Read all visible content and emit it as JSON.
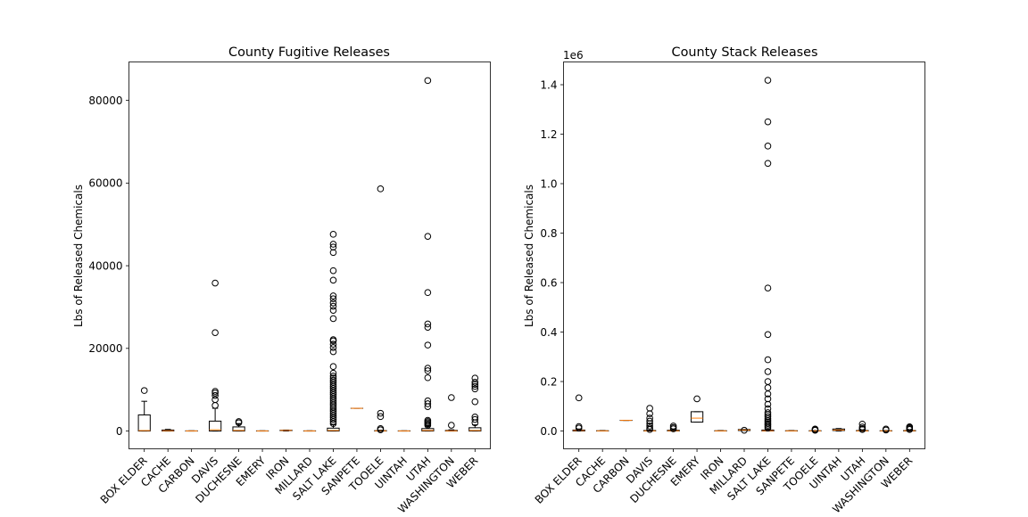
{
  "chart_data": [
    {
      "type": "box",
      "title": "County Fugitive Releases",
      "xlabel": "",
      "ylabel": "Lbs of Released Chemicals",
      "scale_label": "",
      "ylim": [
        -4300,
        89300
      ],
      "yticks": [
        0,
        20000,
        40000,
        60000,
        80000
      ],
      "ytick_labels": [
        "0",
        "20000",
        "40000",
        "60000",
        "80000"
      ],
      "categories": [
        "BOX ELDER",
        "CACHE",
        "CARBON",
        "DAVIS",
        "DUCHESNE",
        "EMERY",
        "IRON",
        "MILLARD",
        "SALT LAKE",
        "SANPETE",
        "TOOELE",
        "UINTAH",
        "UTAH",
        "WASHINGTON",
        "WEBER"
      ],
      "boxes": [
        {
          "whislo": 0,
          "q1": 0,
          "med": 120,
          "q3": 3900,
          "whishi": 7200,
          "fliers": [
            9800
          ]
        },
        {
          "whislo": 0,
          "q1": 0,
          "med": 80,
          "q3": 250,
          "whishi": 400,
          "fliers": []
        },
        {
          "whislo": 0,
          "q1": 0,
          "med": 20,
          "q3": 40,
          "whishi": 60,
          "fliers": []
        },
        {
          "whislo": 0,
          "q1": 0,
          "med": 300,
          "q3": 2400,
          "whishi": 5500,
          "fliers": [
            6200,
            7600,
            8600,
            9200,
            9600,
            23800,
            35800
          ]
        },
        {
          "whislo": 0,
          "q1": 0,
          "med": 150,
          "q3": 1000,
          "whishi": 1800,
          "fliers": [
            2000,
            2300
          ]
        },
        {
          "whislo": 0,
          "q1": 0,
          "med": 20,
          "q3": 40,
          "whishi": 60,
          "fliers": []
        },
        {
          "whislo": 0,
          "q1": 100,
          "med": 150,
          "q3": 200,
          "whishi": 250,
          "fliers": []
        },
        {
          "whislo": 0,
          "q1": 0,
          "med": 20,
          "q3": 40,
          "whishi": 60,
          "fliers": []
        },
        {
          "whislo": 0,
          "q1": 0,
          "med": 150,
          "q3": 700,
          "whishi": 1500,
          "fliers": [
            1800,
            2300,
            2800,
            3300,
            3800,
            4300,
            4800,
            5300,
            5800,
            6300,
            6800,
            7300,
            7800,
            8300,
            8800,
            9300,
            9800,
            10300,
            10800,
            11300,
            11800,
            12300,
            12800,
            13300,
            14000,
            15600,
            19200,
            20200,
            21000,
            21800,
            22100,
            27200,
            29200,
            30200,
            31000,
            32000,
            32700,
            36500,
            38800,
            43200,
            44500,
            45200,
            47600
          ]
        },
        {
          "whislo": 5500,
          "q1": 5500,
          "med": 5500,
          "q3": 5500,
          "whishi": 5500,
          "fliers": []
        },
        {
          "whislo": 0,
          "q1": 0,
          "med": 50,
          "q3": 100,
          "whishi": 200,
          "fliers": [
            300,
            600,
            3500,
            4300,
            58600
          ]
        },
        {
          "whislo": 0,
          "q1": 0,
          "med": 20,
          "q3": 40,
          "whishi": 60,
          "fliers": []
        },
        {
          "whislo": 0,
          "q1": 0,
          "med": 150,
          "q3": 600,
          "whishi": 1200,
          "fliers": [
            1400,
            1700,
            2000,
            2300,
            2600,
            5900,
            6600,
            7300,
            12900,
            14600,
            15200,
            20800,
            25100,
            25900,
            33500,
            47100,
            84800
          ]
        },
        {
          "whislo": 0,
          "q1": 0,
          "med": 50,
          "q3": 150,
          "whishi": 300,
          "fliers": [
            1400,
            8100
          ]
        },
        {
          "whislo": 0,
          "q1": 0,
          "med": 150,
          "q3": 800,
          "whishi": 1500,
          "fliers": [
            2000,
            2800,
            3400,
            7100,
            10200,
            10800,
            11300,
            11800,
            12800
          ]
        }
      ]
    },
    {
      "type": "box",
      "title": "County Stack Releases",
      "xlabel": "",
      "ylabel": "Lbs of Released Chemicals",
      "scale_label": "1e6",
      "ylim": [
        -0.072,
        1.492
      ],
      "yticks": [
        0,
        0.2,
        0.4,
        0.6,
        0.8,
        1.0,
        1.2,
        1.4
      ],
      "ytick_labels": [
        "0.0",
        "0.2",
        "0.4",
        "0.6",
        "0.8",
        "1.0",
        "1.2",
        "1.4"
      ],
      "categories": [
        "BOX ELDER",
        "CACHE",
        "CARBON",
        "DAVIS",
        "DUCHESNE",
        "EMERY",
        "IRON",
        "MILLARD",
        "SALT LAKE",
        "SANPETE",
        "TOOELE",
        "UINTAH",
        "UTAH",
        "WASHINGTON",
        "WEBER"
      ],
      "boxes": [
        {
          "whislo": 0,
          "q1": 0,
          "med": 0.002,
          "q3": 0.004,
          "whishi": 0.008,
          "fliers": [
            0.012,
            0.018,
            0.134
          ]
        },
        {
          "whislo": 0,
          "q1": 0,
          "med": 0.0005,
          "q3": 0.001,
          "whishi": 0.002,
          "fliers": []
        },
        {
          "whislo": 0.043,
          "q1": 0.043,
          "med": 0.043,
          "q3": 0.043,
          "whishi": 0.043,
          "fliers": []
        },
        {
          "whislo": 0,
          "q1": 0,
          "med": 0.0005,
          "q3": 0.002,
          "whishi": 0.004,
          "fliers": [
            0.006,
            0.012,
            0.02,
            0.03,
            0.04,
            0.052,
            0.07,
            0.092
          ]
        },
        {
          "whislo": 0,
          "q1": 0,
          "med": 0.001,
          "q3": 0.003,
          "whishi": 0.006,
          "fliers": [
            0.009,
            0.014,
            0.02
          ]
        },
        {
          "whislo": 0.036,
          "q1": 0.036,
          "med": 0.052,
          "q3": 0.078,
          "whishi": 0.078,
          "fliers": [
            0.13
          ]
        },
        {
          "whislo": 0,
          "q1": 0,
          "med": 0.0005,
          "q3": 0.001,
          "whishi": 0.002,
          "fliers": []
        },
        {
          "whislo": 0.002,
          "q1": 0.002,
          "med": 0.004,
          "q3": 0.006,
          "whishi": 0.006,
          "fliers": [
            0.003
          ]
        },
        {
          "whislo": 0,
          "q1": 0,
          "med": 0.001,
          "q3": 0.004,
          "whishi": 0.008,
          "fliers": [
            0.012,
            0.018,
            0.024,
            0.03,
            0.036,
            0.042,
            0.05,
            0.058,
            0.066,
            0.074,
            0.09,
            0.108,
            0.13,
            0.15,
            0.175,
            0.2,
            0.24,
            0.288,
            0.39,
            0.578,
            1.082,
            1.152,
            1.25,
            1.418
          ]
        },
        {
          "whislo": 0,
          "q1": 0,
          "med": 0.0005,
          "q3": 0.001,
          "whishi": 0.002,
          "fliers": []
        },
        {
          "whislo": 0,
          "q1": 0,
          "med": 0.0005,
          "q3": 0.001,
          "whishi": 0.002,
          "fliers": [
            0.003,
            0.005,
            0.008
          ]
        },
        {
          "whislo": 0,
          "q1": 0.002,
          "med": 0.004,
          "q3": 0.008,
          "whishi": 0.01,
          "fliers": []
        },
        {
          "whislo": 0,
          "q1": 0,
          "med": 0.0005,
          "q3": 0.002,
          "whishi": 0.004,
          "fliers": [
            0.006,
            0.01,
            0.016,
            0.028
          ]
        },
        {
          "whislo": 0,
          "q1": 0,
          "med": 0.0005,
          "q3": 0.001,
          "whishi": 0.002,
          "fliers": [
            0.004,
            0.008
          ]
        },
        {
          "whislo": 0,
          "q1": 0,
          "med": 0.001,
          "q3": 0.002,
          "whishi": 0.004,
          "fliers": [
            0.006,
            0.01,
            0.014,
            0.017
          ]
        }
      ]
    }
  ]
}
